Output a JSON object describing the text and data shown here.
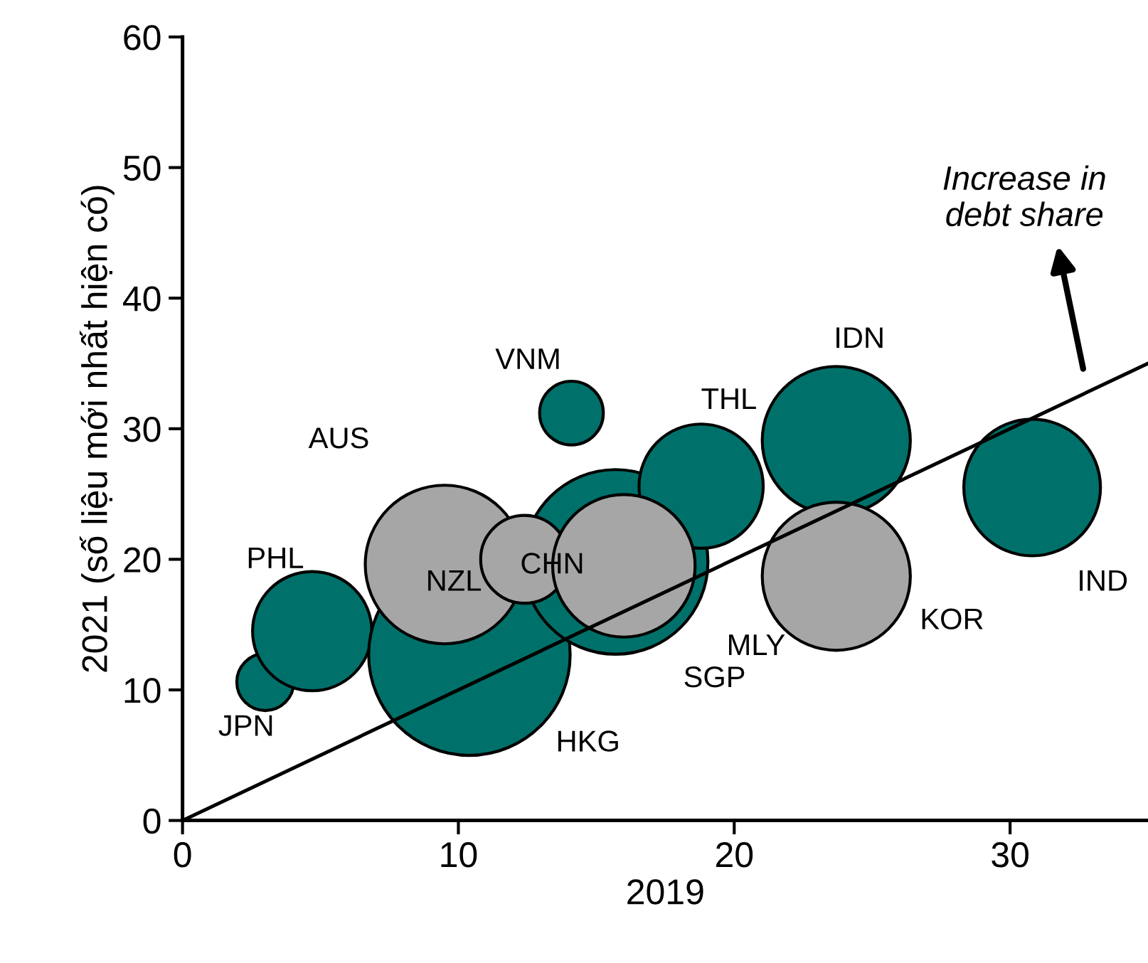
{
  "chart_data": {
    "type": "bubble",
    "xlabel": "2019",
    "ylabel": "2021 (số liệu mới nhất hiện có)",
    "xlim": [
      0,
      35
    ],
    "ylim": [
      0,
      60
    ],
    "xticks": [
      0,
      10,
      20,
      30
    ],
    "yticks": [
      0,
      10,
      20,
      30,
      40,
      50,
      60
    ],
    "grid": false,
    "legend": false,
    "series": [
      {
        "color": "#00716a",
        "x": [
          3.0,
          4.7,
          10.4,
          14.1,
          15.7,
          18.8,
          23.7,
          30.8
        ],
        "values": [
          10.6,
          14.5,
          12.7,
          31.2,
          19.8,
          25.6,
          29.1,
          25.5
        ],
        "sizes": [
          0.08,
          0.35,
          1,
          0.1,
          0.84,
          0.38,
          0.54,
          0.46
        ]
      },
      {
        "color": "#a6a6a6",
        "x": [
          9.5,
          12.4,
          16.0,
          23.7
        ],
        "values": [
          19.6,
          20.0,
          19.5,
          18.7
        ],
        "sizes": [
          0.62,
          0.19,
          0.5,
          0.54
        ]
      },
      {
        "type": "line",
        "color": "#000000",
        "x": [
          0,
          35
        ],
        "values": [
          0,
          35
        ]
      }
    ],
    "annotations": [
      "JPN",
      "PHL",
      "AUS",
      "HKG",
      "VNM",
      "SGP",
      "THL",
      "IDN",
      "IND",
      "NZL",
      "CHN",
      "MLY",
      "KOR",
      "Increase in\ndebt share"
    ]
  }
}
